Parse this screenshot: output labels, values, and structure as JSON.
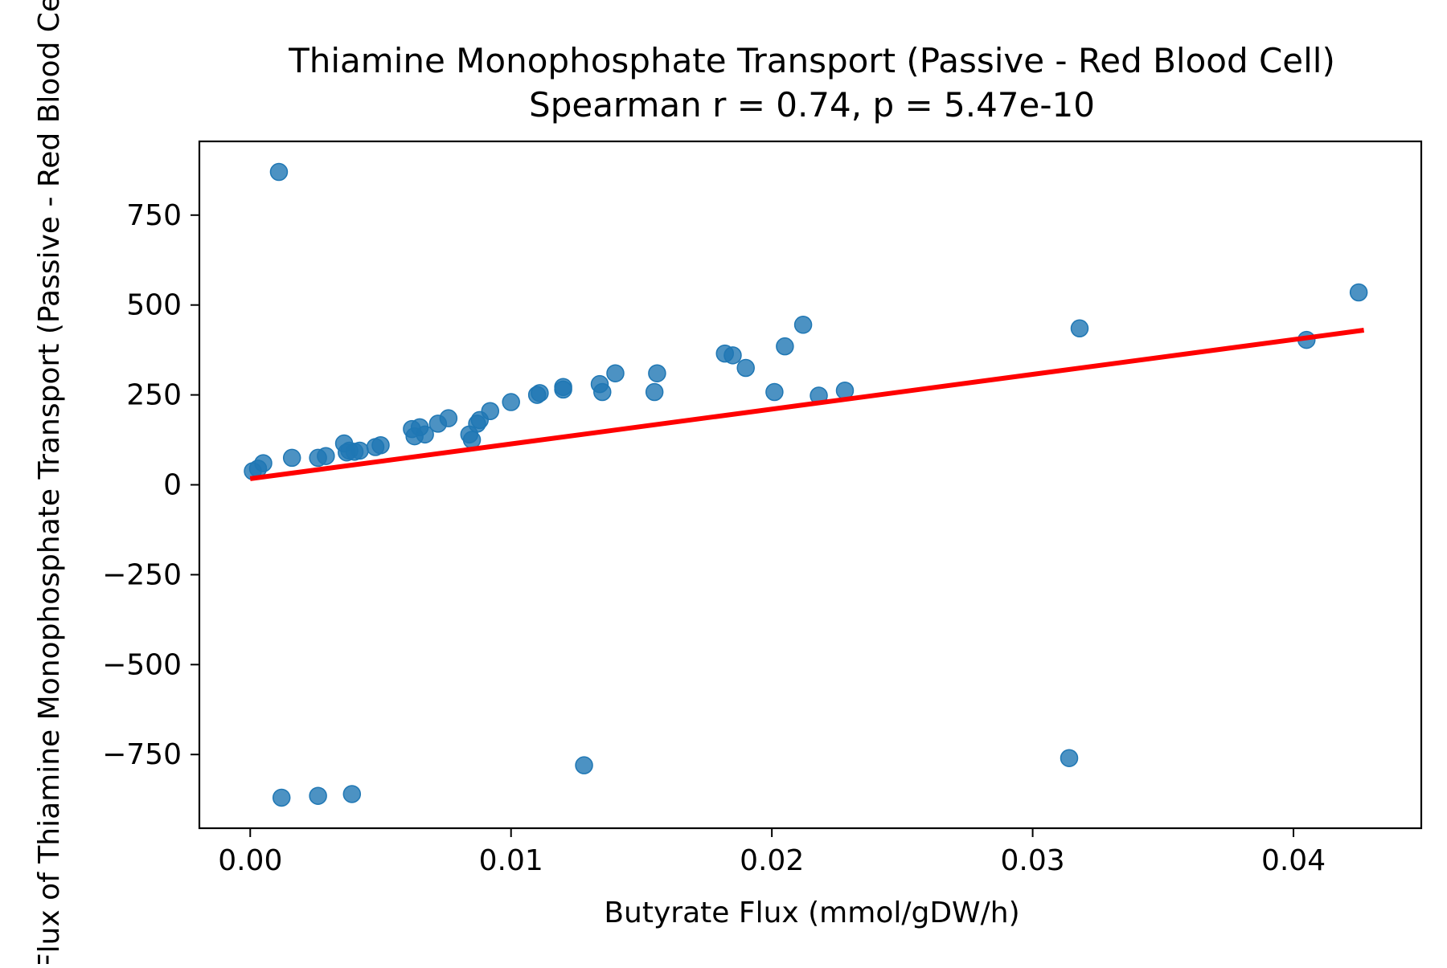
{
  "chart_data": {
    "type": "scatter",
    "title": "Thiamine Monophosphate Transport (Passive - Red Blood Cell)",
    "subtitle": "Spearman r = 0.74, p = 5.47e-10",
    "xlabel": "Butyrate Flux (mmol/gDW/h)",
    "ylabel": "Flux of Thiamine Monophosphate Transport (Passive - Red Blood Cell)",
    "xlim": [
      -0.00195,
      0.0449
    ],
    "ylim": [
      -955,
      955
    ],
    "xticks": [
      {
        "value": 0.0,
        "label": "0.00"
      },
      {
        "value": 0.01,
        "label": "0.01"
      },
      {
        "value": 0.02,
        "label": "0.02"
      },
      {
        "value": 0.03,
        "label": "0.03"
      },
      {
        "value": 0.04,
        "label": "0.04"
      }
    ],
    "yticks": [
      {
        "value": -750,
        "label": "−750"
      },
      {
        "value": -500,
        "label": "−500"
      },
      {
        "value": -250,
        "label": "−250"
      },
      {
        "value": 0,
        "label": "0"
      },
      {
        "value": 250,
        "label": "250"
      },
      {
        "value": 500,
        "label": "500"
      },
      {
        "value": 750,
        "label": "750"
      }
    ],
    "grid": false,
    "legend": "none",
    "point_color": "#1f77b4",
    "fit_color": "#ff0000",
    "points": [
      {
        "x": 0.0001,
        "y": 38
      },
      {
        "x": 0.0003,
        "y": 45
      },
      {
        "x": 0.0005,
        "y": 60
      },
      {
        "x": 0.0011,
        "y": 870
      },
      {
        "x": 0.0012,
        "y": -870
      },
      {
        "x": 0.0016,
        "y": 75
      },
      {
        "x": 0.0026,
        "y": -865
      },
      {
        "x": 0.0026,
        "y": 75
      },
      {
        "x": 0.0029,
        "y": 80
      },
      {
        "x": 0.0036,
        "y": 115
      },
      {
        "x": 0.0037,
        "y": 90
      },
      {
        "x": 0.0038,
        "y": 95
      },
      {
        "x": 0.0039,
        "y": -860
      },
      {
        "x": 0.004,
        "y": 92
      },
      {
        "x": 0.0042,
        "y": 95
      },
      {
        "x": 0.0048,
        "y": 105
      },
      {
        "x": 0.005,
        "y": 110
      },
      {
        "x": 0.0062,
        "y": 155
      },
      {
        "x": 0.0063,
        "y": 135
      },
      {
        "x": 0.0065,
        "y": 160
      },
      {
        "x": 0.0067,
        "y": 140
      },
      {
        "x": 0.0072,
        "y": 170
      },
      {
        "x": 0.0076,
        "y": 185
      },
      {
        "x": 0.0084,
        "y": 140
      },
      {
        "x": 0.0085,
        "y": 125
      },
      {
        "x": 0.0087,
        "y": 170
      },
      {
        "x": 0.0088,
        "y": 180
      },
      {
        "x": 0.0092,
        "y": 205
      },
      {
        "x": 0.01,
        "y": 230
      },
      {
        "x": 0.011,
        "y": 250
      },
      {
        "x": 0.0111,
        "y": 255
      },
      {
        "x": 0.012,
        "y": 265
      },
      {
        "x": 0.012,
        "y": 272
      },
      {
        "x": 0.0128,
        "y": -780
      },
      {
        "x": 0.0134,
        "y": 280
      },
      {
        "x": 0.0135,
        "y": 258
      },
      {
        "x": 0.014,
        "y": 310
      },
      {
        "x": 0.0155,
        "y": 258
      },
      {
        "x": 0.0156,
        "y": 310
      },
      {
        "x": 0.0182,
        "y": 365
      },
      {
        "x": 0.0185,
        "y": 360
      },
      {
        "x": 0.019,
        "y": 325
      },
      {
        "x": 0.0201,
        "y": 258
      },
      {
        "x": 0.0205,
        "y": 385
      },
      {
        "x": 0.0212,
        "y": 445
      },
      {
        "x": 0.0218,
        "y": 248
      },
      {
        "x": 0.0228,
        "y": 262
      },
      {
        "x": 0.0314,
        "y": -760
      },
      {
        "x": 0.0318,
        "y": 435
      },
      {
        "x": 0.0405,
        "y": 403
      },
      {
        "x": 0.0425,
        "y": 535
      }
    ],
    "fit_line": {
      "x": [
        0.0,
        0.0427
      ],
      "y": [
        17,
        430
      ]
    }
  }
}
